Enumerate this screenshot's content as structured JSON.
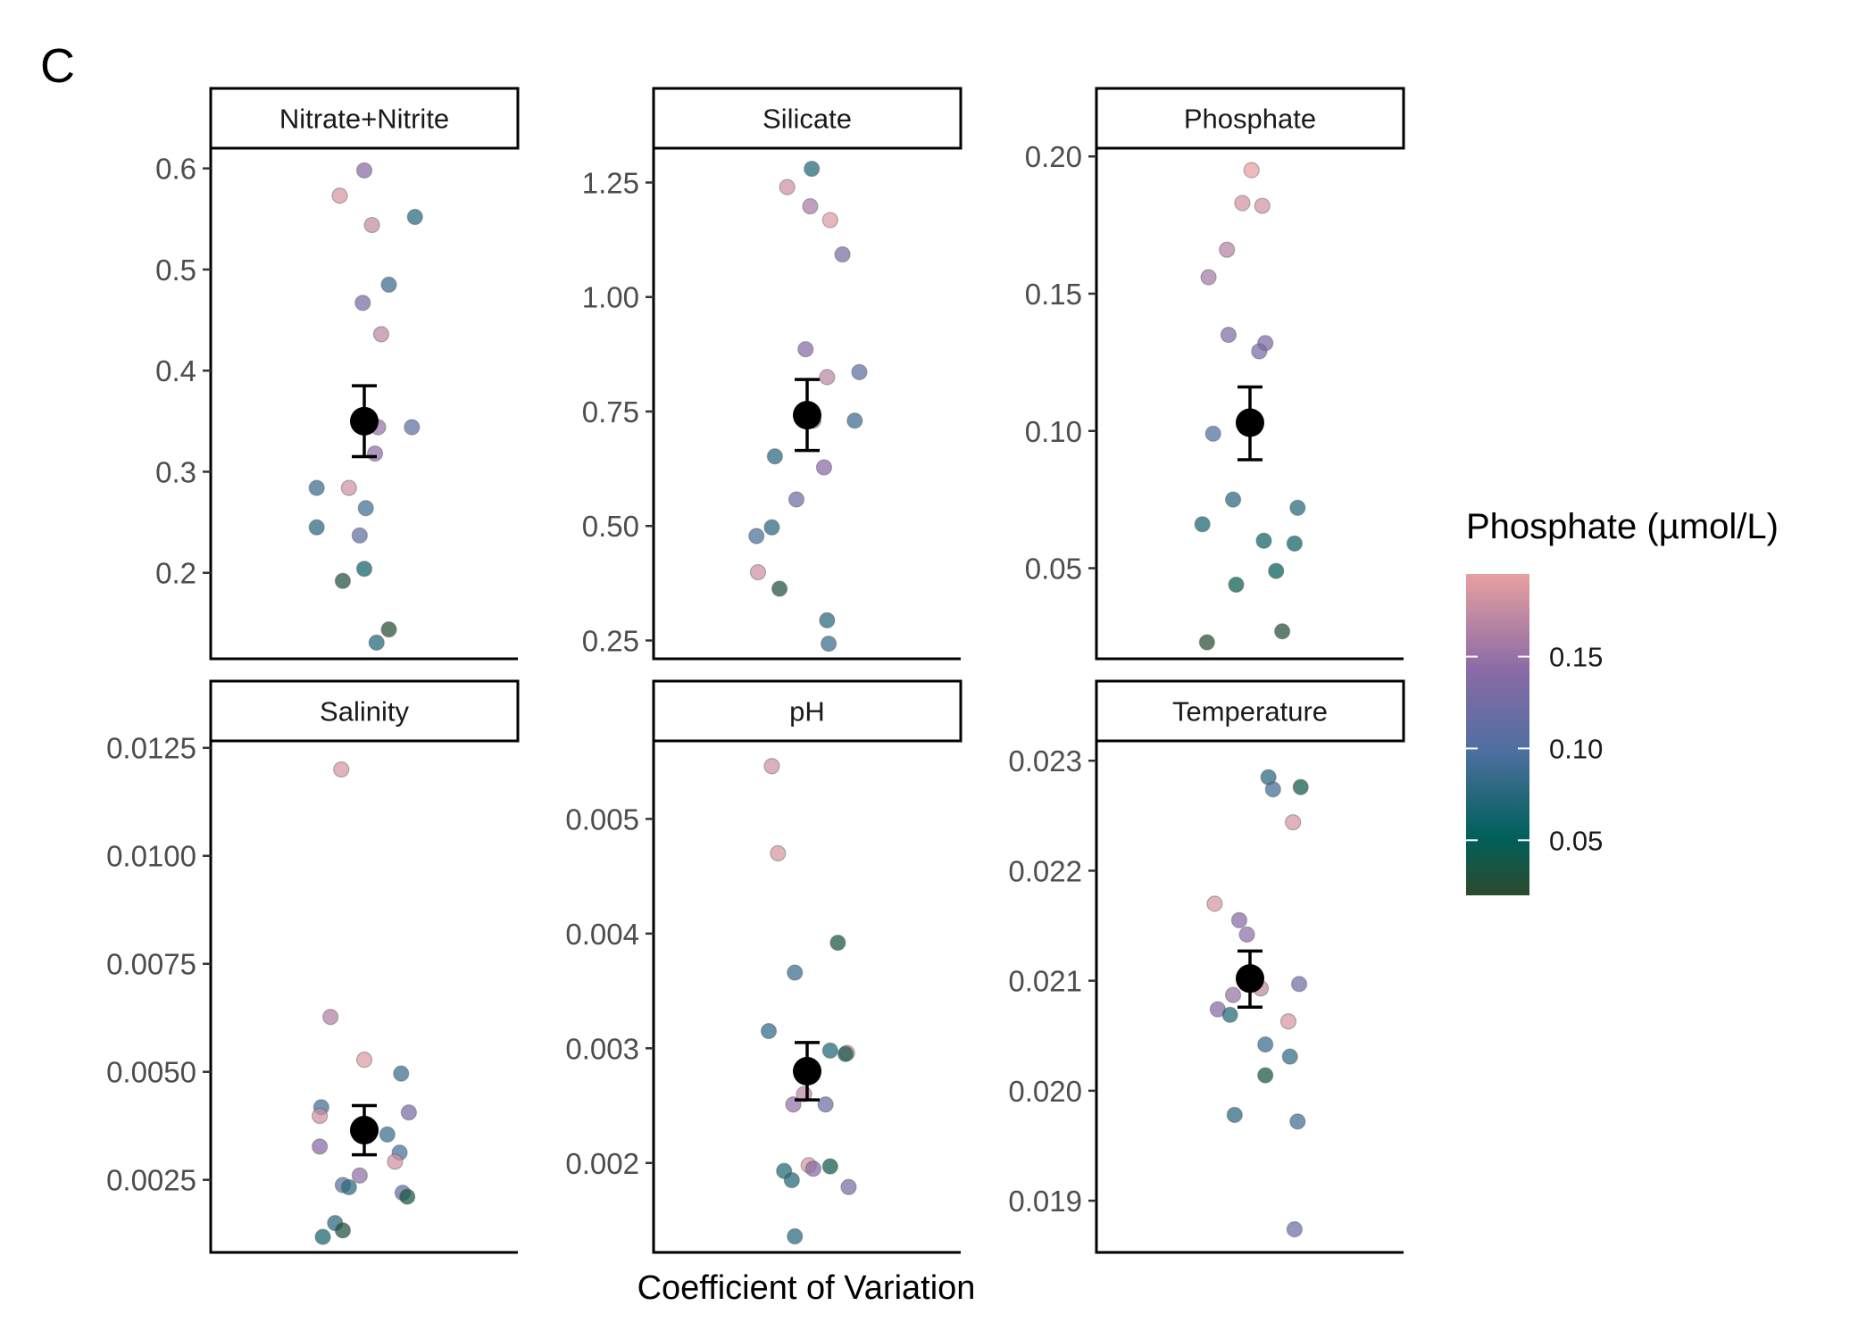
{
  "panel_tag": "C",
  "x_axis_title": "Coefficient of Variation",
  "colors": {
    "low": "#2c4a2e",
    "mid_low": "#00605a",
    "mid": "#4e6fa0",
    "mid_high": "#8a6aa6",
    "high": "#e8a0a0",
    "summary_point": "#000000"
  },
  "legend": {
    "title": "Phosphate (µmol/L)",
    "min": 0.02,
    "max": 0.195,
    "ticks": [
      {
        "value": 0.15,
        "label": "0.15"
      },
      {
        "value": 0.1,
        "label": "0.10"
      },
      {
        "value": 0.05,
        "label": "0.05"
      }
    ]
  },
  "chart_data": [
    {
      "type": "scatter",
      "facet": "Nitrate+Nitrite",
      "ylim": [
        0.115,
        0.62
      ],
      "yticks": [
        {
          "value": 0.2,
          "label": "0.2"
        },
        {
          "value": 0.3,
          "label": "0.3"
        },
        {
          "value": 0.4,
          "label": "0.4"
        },
        {
          "value": 0.5,
          "label": "0.5"
        },
        {
          "value": 0.6,
          "label": "0.6"
        }
      ],
      "mean": 0.35,
      "error": [
        0.315,
        0.385
      ],
      "points": [
        {
          "jitter": 0.0,
          "y": 0.598,
          "color": 0.14
        },
        {
          "jitter": -0.16,
          "y": 0.573,
          "color": 0.185
        },
        {
          "jitter": 0.05,
          "y": 0.544,
          "color": 0.175
        },
        {
          "jitter": 0.33,
          "y": 0.552,
          "color": 0.075
        },
        {
          "jitter": 0.16,
          "y": 0.485,
          "color": 0.085
        },
        {
          "jitter": -0.01,
          "y": 0.467,
          "color": 0.13
        },
        {
          "jitter": 0.11,
          "y": 0.436,
          "color": 0.17
        },
        {
          "jitter": 0.09,
          "y": 0.344,
          "color": 0.15
        },
        {
          "jitter": 0.31,
          "y": 0.344,
          "color": 0.11
        },
        {
          "jitter": 0.07,
          "y": 0.318,
          "color": 0.145
        },
        {
          "jitter": -0.31,
          "y": 0.284,
          "color": 0.085
        },
        {
          "jitter": -0.1,
          "y": 0.284,
          "color": 0.18
        },
        {
          "jitter": 0.01,
          "y": 0.264,
          "color": 0.09
        },
        {
          "jitter": -0.31,
          "y": 0.245,
          "color": 0.075
        },
        {
          "jitter": -0.03,
          "y": 0.237,
          "color": 0.11
        },
        {
          "jitter": 0.0,
          "y": 0.204,
          "color": 0.06
        },
        {
          "jitter": -0.14,
          "y": 0.192,
          "color": 0.03
        },
        {
          "jitter": 0.16,
          "y": 0.144,
          "color": 0.025
        },
        {
          "jitter": 0.08,
          "y": 0.131,
          "color": 0.07
        }
      ]
    },
    {
      "type": "scatter",
      "facet": "Silicate",
      "ylim": [
        0.21,
        1.325
      ],
      "yticks": [
        {
          "value": 0.25,
          "label": "0.25"
        },
        {
          "value": 0.5,
          "label": "0.50"
        },
        {
          "value": 0.75,
          "label": "0.75"
        },
        {
          "value": 1.0,
          "label": "1.00"
        },
        {
          "value": 1.25,
          "label": "1.25"
        }
      ],
      "mean": 0.742,
      "error": [
        0.665,
        0.82
      ],
      "points": [
        {
          "jitter": 0.03,
          "y": 1.28,
          "color": 0.07
        },
        {
          "jitter": -0.13,
          "y": 1.24,
          "color": 0.18
        },
        {
          "jitter": 0.02,
          "y": 1.198,
          "color": 0.16
        },
        {
          "jitter": 0.15,
          "y": 1.168,
          "color": 0.19
        },
        {
          "jitter": 0.23,
          "y": 1.093,
          "color": 0.13
        },
        {
          "jitter": -0.01,
          "y": 0.886,
          "color": 0.14
        },
        {
          "jitter": 0.13,
          "y": 0.825,
          "color": 0.17
        },
        {
          "jitter": 0.34,
          "y": 0.836,
          "color": 0.11
        },
        {
          "jitter": 0.04,
          "y": 0.73,
          "color": 0.15
        },
        {
          "jitter": 0.31,
          "y": 0.73,
          "color": 0.085
        },
        {
          "jitter": -0.21,
          "y": 0.652,
          "color": 0.075
        },
        {
          "jitter": 0.11,
          "y": 0.628,
          "color": 0.14
        },
        {
          "jitter": -0.07,
          "y": 0.558,
          "color": 0.12
        },
        {
          "jitter": -0.23,
          "y": 0.497,
          "color": 0.075
        },
        {
          "jitter": -0.33,
          "y": 0.478,
          "color": 0.095
        },
        {
          "jitter": -0.32,
          "y": 0.399,
          "color": 0.18
        },
        {
          "jitter": -0.18,
          "y": 0.363,
          "color": 0.03
        },
        {
          "jitter": 0.13,
          "y": 0.294,
          "color": 0.075
        },
        {
          "jitter": 0.14,
          "y": 0.243,
          "color": 0.085
        }
      ]
    },
    {
      "type": "scatter",
      "facet": "Phosphate",
      "ylim": [
        0.017,
        0.203
      ],
      "yticks": [
        {
          "value": 0.05,
          "label": "0.05"
        },
        {
          "value": 0.1,
          "label": "0.10"
        },
        {
          "value": 0.15,
          "label": "0.15"
        },
        {
          "value": 0.2,
          "label": "0.20"
        }
      ],
      "mean": 0.103,
      "error": [
        0.0895,
        0.116
      ],
      "points": [
        {
          "jitter": 0.01,
          "y": 0.195,
          "color": 0.195
        },
        {
          "jitter": -0.05,
          "y": 0.183,
          "color": 0.183
        },
        {
          "jitter": 0.08,
          "y": 0.182,
          "color": 0.182
        },
        {
          "jitter": -0.15,
          "y": 0.166,
          "color": 0.166
        },
        {
          "jitter": -0.27,
          "y": 0.156,
          "color": 0.156
        },
        {
          "jitter": -0.14,
          "y": 0.135,
          "color": 0.135
        },
        {
          "jitter": 0.1,
          "y": 0.132,
          "color": 0.132
        },
        {
          "jitter": 0.06,
          "y": 0.129,
          "color": 0.129
        },
        {
          "jitter": -0.24,
          "y": 0.099,
          "color": 0.099
        },
        {
          "jitter": -0.11,
          "y": 0.075,
          "color": 0.075
        },
        {
          "jitter": 0.31,
          "y": 0.072,
          "color": 0.072
        },
        {
          "jitter": -0.31,
          "y": 0.066,
          "color": 0.066
        },
        {
          "jitter": 0.09,
          "y": 0.06,
          "color": 0.06
        },
        {
          "jitter": 0.29,
          "y": 0.059,
          "color": 0.059
        },
        {
          "jitter": 0.17,
          "y": 0.049,
          "color": 0.049
        },
        {
          "jitter": -0.09,
          "y": 0.044,
          "color": 0.044
        },
        {
          "jitter": 0.21,
          "y": 0.027,
          "color": 0.027
        },
        {
          "jitter": -0.28,
          "y": 0.023,
          "color": 0.023
        }
      ]
    },
    {
      "type": "scatter",
      "facet": "Salinity",
      "ylim": [
        0.00082,
        0.01266
      ],
      "yticks": [
        {
          "value": 0.0025,
          "label": "0.0025"
        },
        {
          "value": 0.005,
          "label": "0.0050"
        },
        {
          "value": 0.0075,
          "label": "0.0075"
        },
        {
          "value": 0.01,
          "label": "0.0100"
        },
        {
          "value": 0.0125,
          "label": "0.0125"
        }
      ],
      "mean": 0.00365,
      "error": [
        0.00308,
        0.00422
      ],
      "points": [
        {
          "jitter": -0.15,
          "y": 0.012,
          "color": 0.185
        },
        {
          "jitter": -0.22,
          "y": 0.00627,
          "color": 0.165
        },
        {
          "jitter": 0.0,
          "y": 0.00528,
          "color": 0.19
        },
        {
          "jitter": 0.24,
          "y": 0.00496,
          "color": 0.085
        },
        {
          "jitter": -0.28,
          "y": 0.00418,
          "color": 0.09
        },
        {
          "jitter": 0.29,
          "y": 0.00406,
          "color": 0.13
        },
        {
          "jitter": -0.29,
          "y": 0.00398,
          "color": 0.18
        },
        {
          "jitter": 0.15,
          "y": 0.00355,
          "color": 0.085
        },
        {
          "jitter": -0.29,
          "y": 0.00327,
          "color": 0.14
        },
        {
          "jitter": 0.23,
          "y": 0.00313,
          "color": 0.095
        },
        {
          "jitter": 0.2,
          "y": 0.00292,
          "color": 0.18
        },
        {
          "jitter": -0.03,
          "y": 0.0026,
          "color": 0.145
        },
        {
          "jitter": -0.14,
          "y": 0.00238,
          "color": 0.11
        },
        {
          "jitter": -0.1,
          "y": 0.00233,
          "color": 0.075
        },
        {
          "jitter": 0.25,
          "y": 0.0022,
          "color": 0.11
        },
        {
          "jitter": 0.28,
          "y": 0.00211,
          "color": 0.035
        },
        {
          "jitter": -0.19,
          "y": 0.0015,
          "color": 0.075
        },
        {
          "jitter": -0.14,
          "y": 0.00133,
          "color": 0.03
        },
        {
          "jitter": -0.27,
          "y": 0.00118,
          "color": 0.065
        }
      ]
    },
    {
      "type": "scatter",
      "facet": "pH",
      "ylim": [
        0.00122,
        0.00568
      ],
      "yticks": [
        {
          "value": 0.002,
          "label": "0.002"
        },
        {
          "value": 0.003,
          "label": "0.003"
        },
        {
          "value": 0.004,
          "label": "0.004"
        },
        {
          "value": 0.005,
          "label": "0.005"
        }
      ],
      "mean": 0.0028,
      "error": [
        0.00255,
        0.00305
      ],
      "points": [
        {
          "jitter": -0.23,
          "y": 0.00546,
          "color": 0.18
        },
        {
          "jitter": -0.19,
          "y": 0.0047,
          "color": 0.185
        },
        {
          "jitter": 0.2,
          "y": 0.00392,
          "color": 0.035
        },
        {
          "jitter": -0.08,
          "y": 0.00366,
          "color": 0.085
        },
        {
          "jitter": -0.25,
          "y": 0.00315,
          "color": 0.08
        },
        {
          "jitter": 0.15,
          "y": 0.00298,
          "color": 0.07
        },
        {
          "jitter": 0.26,
          "y": 0.00296,
          "color": 0.18
        },
        {
          "jitter": 0.25,
          "y": 0.00295,
          "color": 0.04
        },
        {
          "jitter": -0.02,
          "y": 0.0026,
          "color": 0.17
        },
        {
          "jitter": 0.12,
          "y": 0.00251,
          "color": 0.12
        },
        {
          "jitter": -0.09,
          "y": 0.00251,
          "color": 0.15
        },
        {
          "jitter": 0.01,
          "y": 0.00198,
          "color": 0.185
        },
        {
          "jitter": 0.15,
          "y": 0.00197,
          "color": 0.04
        },
        {
          "jitter": -0.15,
          "y": 0.00193,
          "color": 0.07
        },
        {
          "jitter": 0.04,
          "y": 0.00195,
          "color": 0.14
        },
        {
          "jitter": -0.1,
          "y": 0.00185,
          "color": 0.07
        },
        {
          "jitter": 0.27,
          "y": 0.00179,
          "color": 0.13
        },
        {
          "jitter": -0.08,
          "y": 0.00136,
          "color": 0.075
        }
      ]
    },
    {
      "type": "scatter",
      "facet": "Temperature",
      "ylim": [
        0.01853,
        0.02318
      ],
      "yticks": [
        {
          "value": 0.019,
          "label": "0.019"
        },
        {
          "value": 0.02,
          "label": "0.020"
        },
        {
          "value": 0.021,
          "label": "0.021"
        },
        {
          "value": 0.022,
          "label": "0.022"
        },
        {
          "value": 0.023,
          "label": "0.023"
        }
      ],
      "mean": 0.02102,
      "error": [
        0.02076,
        0.02127
      ],
      "points": [
        {
          "jitter": 0.12,
          "y": 0.02285,
          "color": 0.075
        },
        {
          "jitter": 0.33,
          "y": 0.02276,
          "color": 0.04
        },
        {
          "jitter": 0.15,
          "y": 0.02274,
          "color": 0.09
        },
        {
          "jitter": 0.28,
          "y": 0.02244,
          "color": 0.185
        },
        {
          "jitter": -0.23,
          "y": 0.0217,
          "color": 0.185
        },
        {
          "jitter": -0.07,
          "y": 0.02155,
          "color": 0.14
        },
        {
          "jitter": -0.02,
          "y": 0.02142,
          "color": 0.145
        },
        {
          "jitter": 0.32,
          "y": 0.02097,
          "color": 0.12
        },
        {
          "jitter": 0.07,
          "y": 0.02093,
          "color": 0.17
        },
        {
          "jitter": -0.11,
          "y": 0.02087,
          "color": 0.15
        },
        {
          "jitter": -0.21,
          "y": 0.02074,
          "color": 0.14
        },
        {
          "jitter": -0.13,
          "y": 0.02069,
          "color": 0.07
        },
        {
          "jitter": 0.25,
          "y": 0.02063,
          "color": 0.185
        },
        {
          "jitter": 0.1,
          "y": 0.02042,
          "color": 0.085
        },
        {
          "jitter": 0.26,
          "y": 0.02031,
          "color": 0.08
        },
        {
          "jitter": 0.1,
          "y": 0.02014,
          "color": 0.035
        },
        {
          "jitter": -0.1,
          "y": 0.01978,
          "color": 0.075
        },
        {
          "jitter": 0.31,
          "y": 0.01972,
          "color": 0.09
        },
        {
          "jitter": 0.29,
          "y": 0.01874,
          "color": 0.12
        }
      ]
    }
  ]
}
